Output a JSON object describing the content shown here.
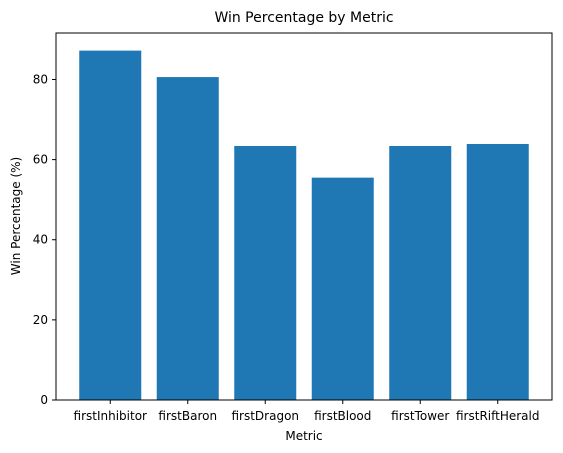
{
  "chart_data": {
    "type": "bar",
    "title": "Win Percentage by Metric",
    "xlabel": "Metric",
    "ylabel": "Win Percentage (%)",
    "categories": [
      "firstInhibitor",
      "firstBaron",
      "firstDragon",
      "firstBlood",
      "firstTower",
      "firstRiftHerald"
    ],
    "values": [
      87.2,
      80.6,
      63.4,
      55.5,
      63.4,
      63.9
    ],
    "ylim": [
      0,
      91.6
    ],
    "yticks": [
      0,
      20,
      40,
      60,
      80
    ],
    "grid": false,
    "legend": "none",
    "bar_color": "#1f77b4"
  }
}
